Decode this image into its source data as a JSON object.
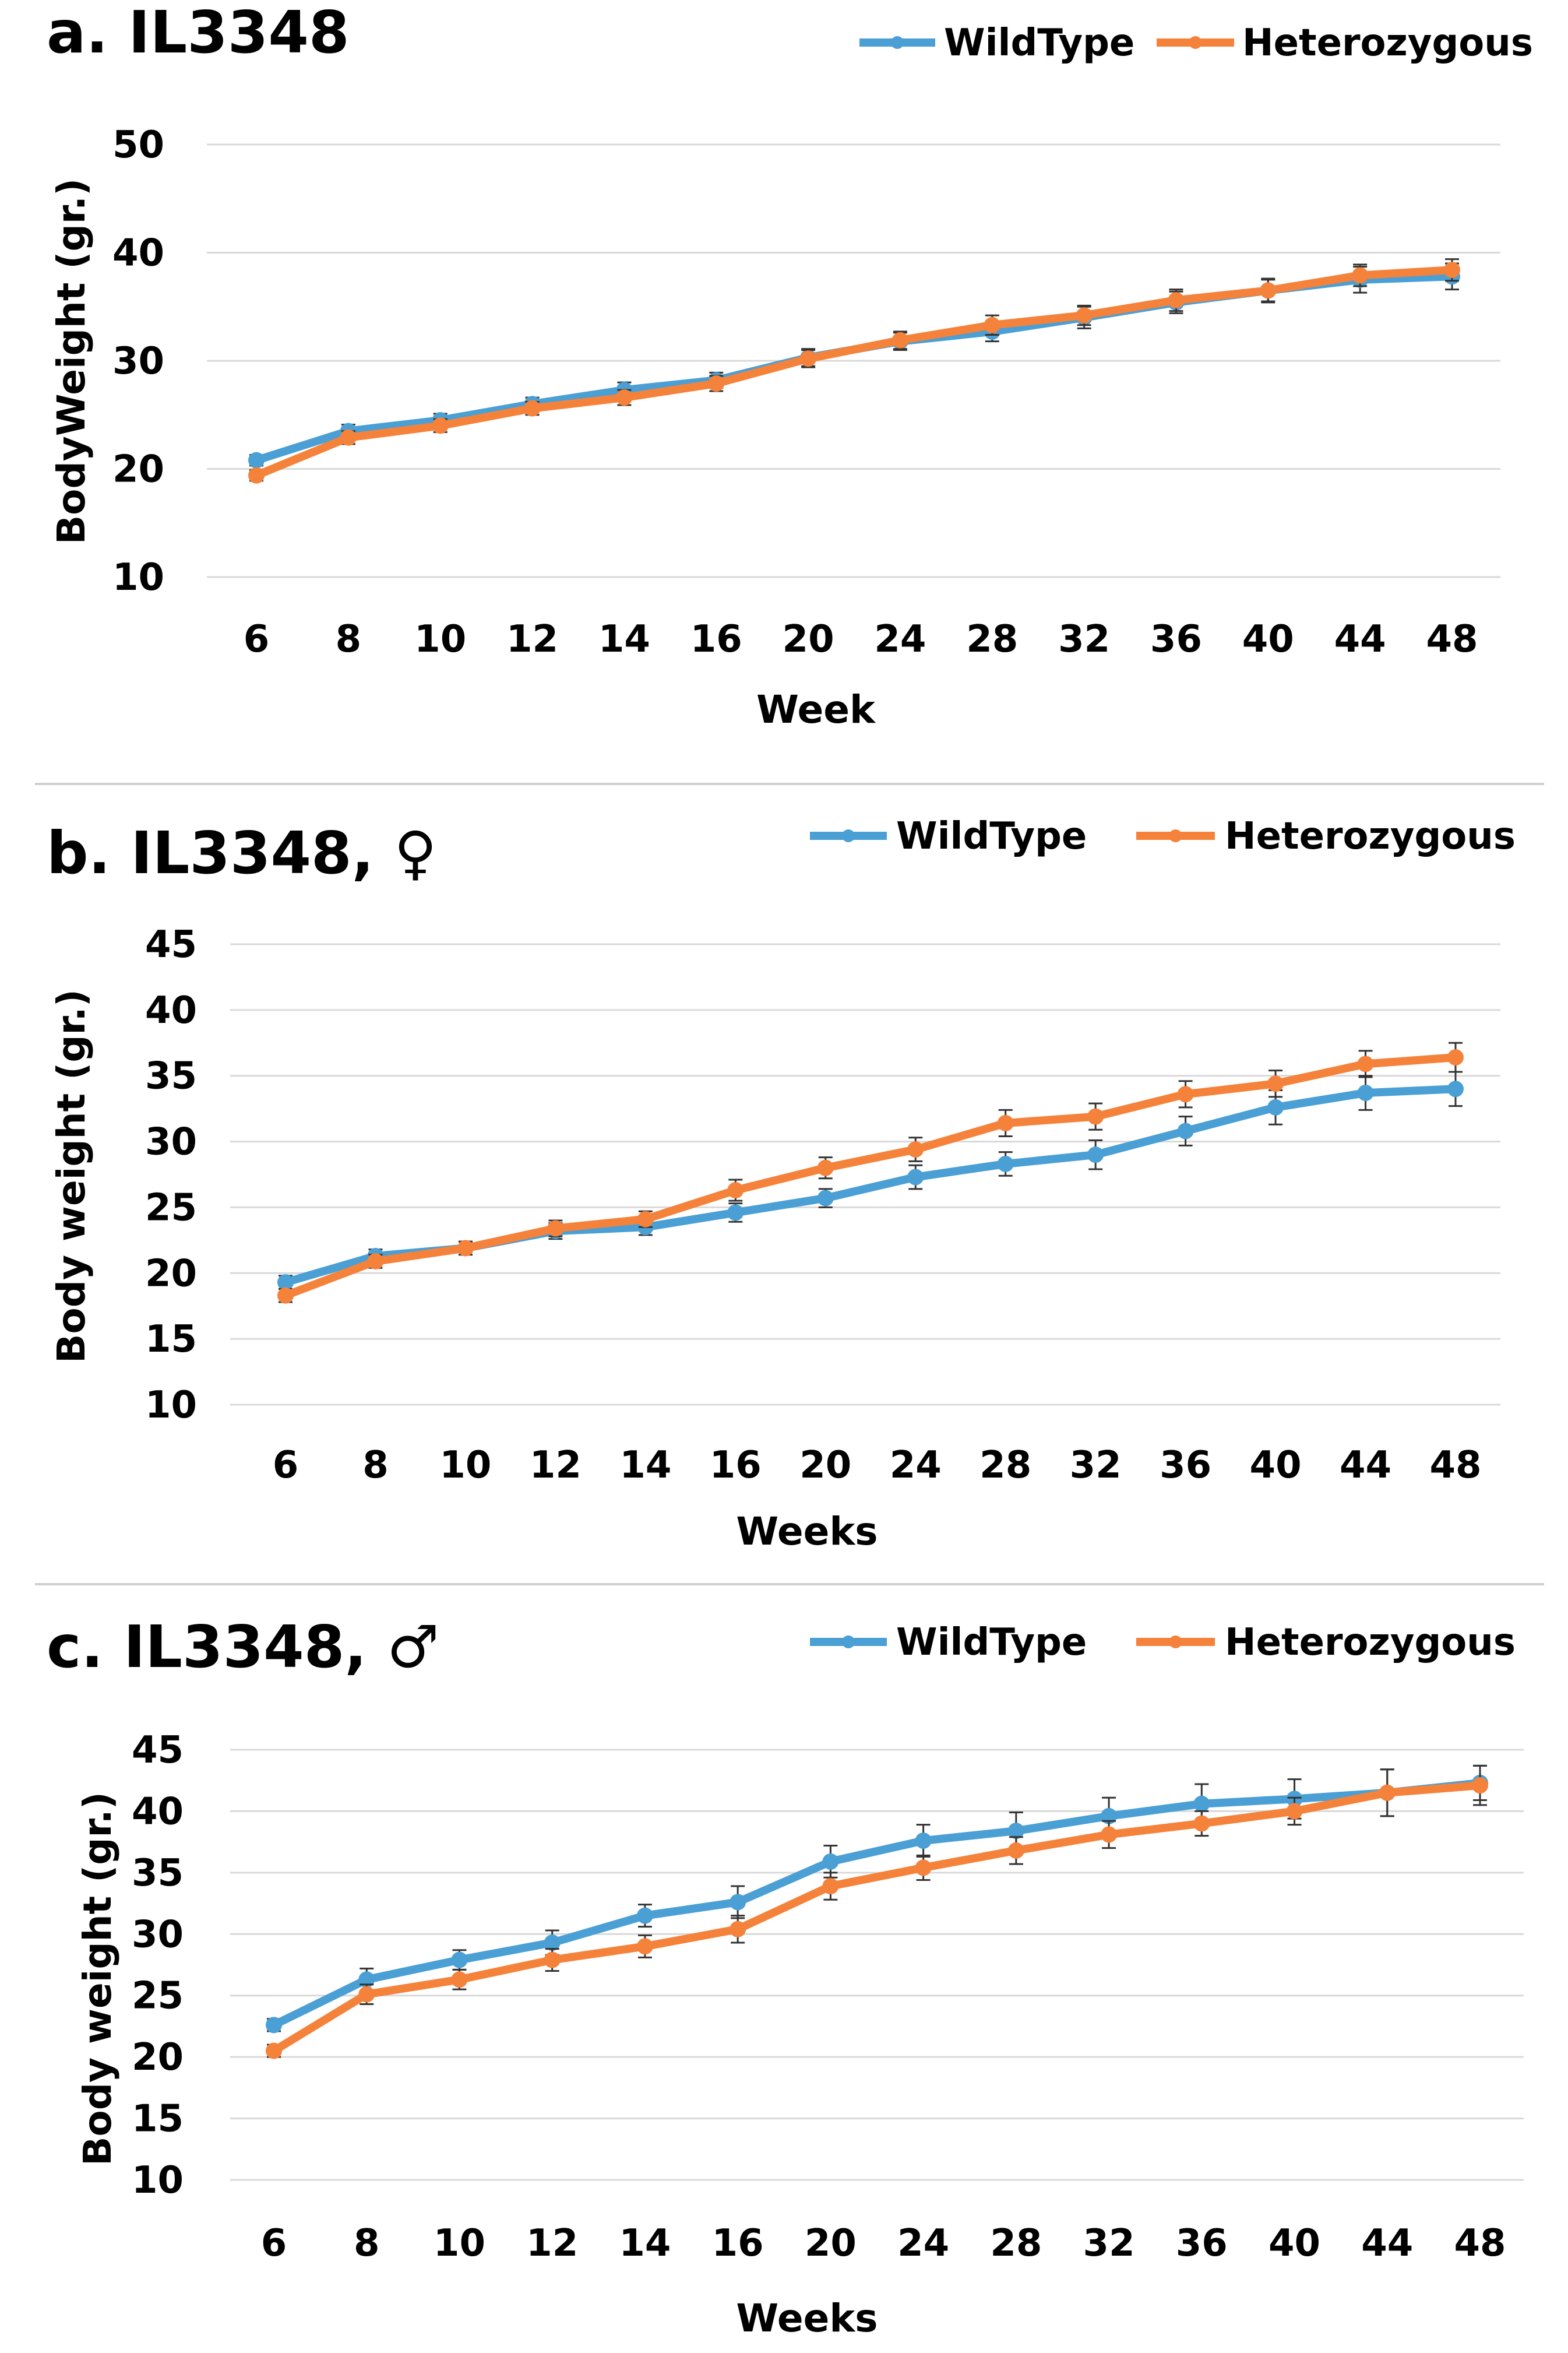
{
  "colors": {
    "wildtype": "#4a9fd5",
    "heterozygous": "#f5823a",
    "grid": "#d9d9d9",
    "divider": "#cfcfcf",
    "errorbar": "#333333",
    "text": "#000000"
  },
  "chart_data": [
    {
      "type": "line",
      "title": "a. IL3348",
      "xlabel": "Week",
      "ylabel": "BodyWeight (gr.)",
      "categories": [
        "6",
        "8",
        "10",
        "12",
        "14",
        "16",
        "20",
        "24",
        "28",
        "32",
        "36",
        "40",
        "44",
        "48"
      ],
      "ylim": [
        10,
        50
      ],
      "yticks": [
        10,
        20,
        30,
        40,
        50
      ],
      "grid": true,
      "legend": "top-right",
      "series": [
        {
          "name": "WildType",
          "color": "#4a9fd5",
          "values": [
            20.8,
            23.5,
            24.5,
            26.0,
            27.3,
            28.2,
            30.3,
            31.8,
            32.7,
            34.0,
            35.4,
            36.5,
            37.5,
            37.8
          ],
          "errors": [
            0.5,
            0.6,
            0.6,
            0.6,
            0.7,
            0.7,
            0.8,
            0.8,
            0.9,
            1.0,
            1.0,
            1.1,
            1.2,
            1.2
          ]
        },
        {
          "name": "Heterozygous",
          "color": "#f5823a",
          "values": [
            19.4,
            22.9,
            24.0,
            25.6,
            26.6,
            27.9,
            30.2,
            31.9,
            33.3,
            34.2,
            35.6,
            36.5,
            37.9,
            38.4
          ],
          "errors": [
            0.5,
            0.6,
            0.6,
            0.6,
            0.7,
            0.7,
            0.8,
            0.8,
            0.9,
            0.9,
            1.0,
            1.0,
            1.0,
            1.0
          ]
        }
      ]
    },
    {
      "type": "line",
      "title": "b. IL3348, ♀",
      "xlabel": "Weeks",
      "ylabel": "Body weight (gr.)",
      "categories": [
        "6",
        "8",
        "10",
        "12",
        "14",
        "16",
        "20",
        "24",
        "28",
        "32",
        "36",
        "40",
        "44",
        "48"
      ],
      "ylim": [
        10,
        45
      ],
      "yticks": [
        10,
        15,
        20,
        25,
        30,
        35,
        40,
        45
      ],
      "grid": true,
      "legend": "top-right",
      "series": [
        {
          "name": "WildType",
          "color": "#4a9fd5",
          "values": [
            19.3,
            21.3,
            21.9,
            23.2,
            23.5,
            24.6,
            25.7,
            27.3,
            28.3,
            29.0,
            30.8,
            32.6,
            33.7,
            34.0
          ],
          "errors": [
            0.5,
            0.5,
            0.5,
            0.6,
            0.6,
            0.7,
            0.7,
            0.9,
            0.9,
            1.1,
            1.1,
            1.3,
            1.3,
            1.3
          ]
        },
        {
          "name": "Heterozygous",
          "color": "#f5823a",
          "values": [
            18.3,
            20.9,
            21.9,
            23.4,
            24.1,
            26.3,
            28.0,
            29.4,
            31.4,
            31.9,
            33.6,
            34.4,
            35.9,
            36.4
          ],
          "errors": [
            0.5,
            0.5,
            0.5,
            0.6,
            0.6,
            0.8,
            0.8,
            0.9,
            1.0,
            1.0,
            1.0,
            1.0,
            1.0,
            1.1
          ]
        }
      ]
    },
    {
      "type": "line",
      "title": "c. IL3348, ♂",
      "xlabel": "Weeks",
      "ylabel": "Body weight (gr.)",
      "categories": [
        "6",
        "8",
        "10",
        "12",
        "14",
        "16",
        "20",
        "24",
        "28",
        "32",
        "36",
        "40",
        "44",
        "48"
      ],
      "ylim": [
        10,
        45
      ],
      "yticks": [
        10,
        15,
        20,
        25,
        30,
        35,
        40,
        45
      ],
      "grid": true,
      "legend": "top-right",
      "series": [
        {
          "name": "WildType",
          "color": "#4a9fd5",
          "values": [
            22.6,
            26.3,
            27.9,
            29.3,
            31.5,
            32.6,
            35.9,
            37.6,
            38.4,
            39.6,
            40.6,
            41.0,
            41.5,
            42.3
          ],
          "errors": [
            0.5,
            0.9,
            0.8,
            1.0,
            0.9,
            1.3,
            1.3,
            1.3,
            1.5,
            1.5,
            1.6,
            1.6,
            1.9,
            1.4
          ]
        },
        {
          "name": "Heterozygous",
          "color": "#f5823a",
          "values": [
            20.5,
            25.1,
            26.3,
            27.9,
            29.0,
            30.4,
            33.9,
            35.4,
            36.8,
            38.1,
            39.0,
            40.0,
            41.5,
            42.1
          ],
          "errors": [
            0.5,
            0.8,
            0.8,
            0.9,
            0.9,
            1.1,
            1.1,
            1.0,
            1.1,
            1.1,
            1.0,
            1.1,
            1.9,
            1.6
          ]
        }
      ]
    }
  ]
}
